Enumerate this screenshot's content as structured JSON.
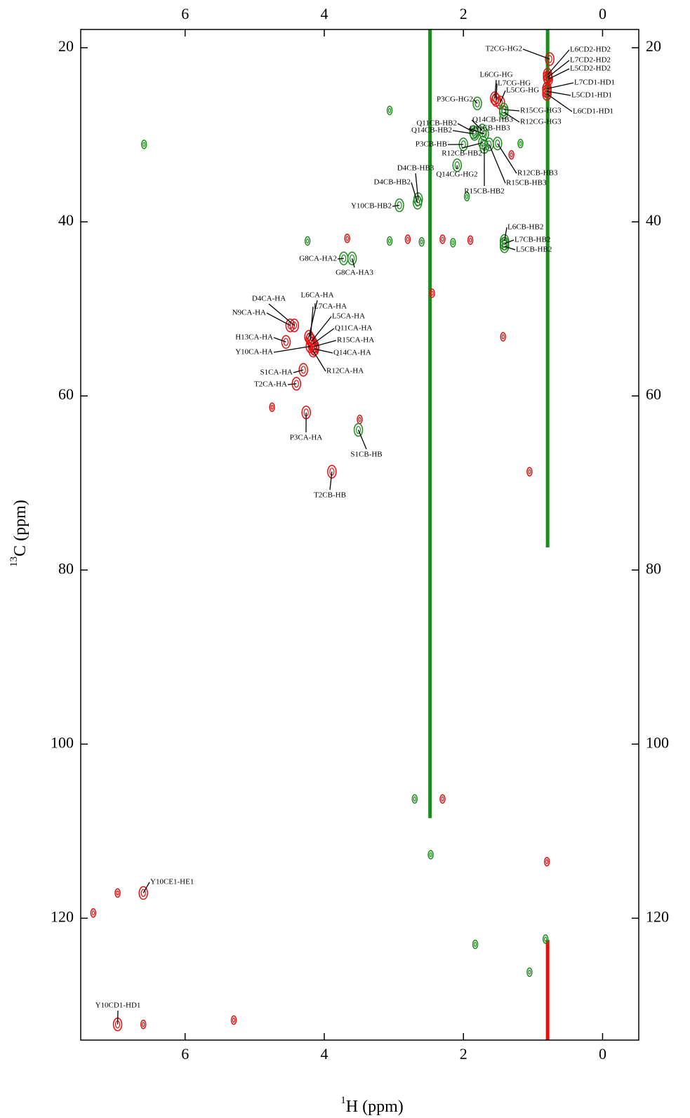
{
  "chart_data": {
    "type": "nmr-2d",
    "x_label_sup": "1",
    "x_label": "H  (ppm)",
    "y_label_sup": "13",
    "y_label": "C  (ppm)",
    "xlim": [
      7.5,
      -0.52
    ],
    "xticks": [
      6,
      4,
      2,
      0
    ],
    "ylim": [
      17.9,
      134
    ],
    "yticks": [
      20,
      40,
      60,
      80,
      100,
      120
    ],
    "positive_color": "#1f8a1f",
    "negative_color": "#e01010",
    "ridges": [
      {
        "x": 2.48,
        "y": [
          17.9,
          108.5
        ],
        "color": "#1f8a1f"
      },
      {
        "x": 0.79,
        "y": [
          17.9,
          77.4
        ],
        "color": "#1f8a1f"
      },
      {
        "x": 0.79,
        "y": [
          122.5,
          134
        ],
        "color": "#e01010"
      }
    ],
    "labeled_peaks": [
      {
        "label": "T2CG-HG2",
        "x": 0.76,
        "y": 21.3,
        "color": "#e01010"
      },
      {
        "label": "L6CD2-HD2",
        "x": 0.79,
        "y": 23.1,
        "color": "#e01010"
      },
      {
        "label": "L7CD2-HD2",
        "x": 0.79,
        "y": 23.4,
        "color": "#e01010"
      },
      {
        "label": "L5CD2-HD2",
        "x": 0.78,
        "y": 23.6,
        "color": "#e01010"
      },
      {
        "label": "L6CG-HG",
        "x": 1.55,
        "y": 25.8,
        "color": "#e01010"
      },
      {
        "label": "L7CG-HG",
        "x": 1.53,
        "y": 26.0,
        "color": "#e01010"
      },
      {
        "label": "L5CG-HG",
        "x": 1.47,
        "y": 26.3,
        "color": "#e01010"
      },
      {
        "label": "L7CD1-HD1",
        "x": 0.8,
        "y": 24.7,
        "color": "#e01010"
      },
      {
        "label": "L5CD1-HD1",
        "x": 0.8,
        "y": 25.0,
        "color": "#e01010"
      },
      {
        "label": "L6CD1-HD1",
        "x": 0.8,
        "y": 25.3,
        "color": "#e01010"
      },
      {
        "label": "P3CG-HG2",
        "x": 1.8,
        "y": 26.4,
        "color": "#1f8a1f"
      },
      {
        "label": "R15CG-HG3",
        "x": 1.42,
        "y": 27.1,
        "color": "#1f8a1f"
      },
      {
        "label": "R12CG-HG3",
        "x": 1.42,
        "y": 27.4,
        "color": "#1f8a1f"
      },
      {
        "label": "Q11CB-HB2",
        "x": 1.85,
        "y": 29.7,
        "color": "#1f8a1f"
      },
      {
        "label": "Q14CB-HB2",
        "x": 1.84,
        "y": 29.9,
        "color": "#1f8a1f"
      },
      {
        "label": "Q14CB-HB3",
        "x": 1.73,
        "y": 29.5,
        "color": "#1f8a1f"
      },
      {
        "label": "Q11CB-HB3",
        "x": 1.7,
        "y": 29.9,
        "color": "#1f8a1f"
      },
      {
        "label": "P3CB-HB",
        "x": 2.0,
        "y": 31.1,
        "color": "#1f8a1f"
      },
      {
        "label": "R12CB-HB2",
        "x": 1.72,
        "y": 30.9,
        "color": "#1f8a1f"
      },
      {
        "label": "R12CB-HB3",
        "x": 1.51,
        "y": 31.0,
        "color": "#1f8a1f"
      },
      {
        "label": "R15CB-HB3",
        "x": 1.63,
        "y": 31.1,
        "color": "#1f8a1f"
      },
      {
        "label": "R15CB-HB2",
        "x": 1.7,
        "y": 31.4,
        "color": "#1f8a1f"
      },
      {
        "label": "Q14CG-HG2",
        "x": 2.09,
        "y": 33.5,
        "color": "#1f8a1f"
      },
      {
        "label": "D4CB-HB3",
        "x": 2.65,
        "y": 37.4,
        "color": "#1f8a1f"
      },
      {
        "label": "D4CB-HB2",
        "x": 2.66,
        "y": 37.8,
        "color": "#1f8a1f"
      },
      {
        "label": "Y10CB-HB2",
        "x": 2.92,
        "y": 38.1,
        "color": "#1f8a1f"
      },
      {
        "label": "L6CB-HB2",
        "x": 1.41,
        "y": 42.2,
        "color": "#1f8a1f"
      },
      {
        "label": "L7CB-HB2",
        "x": 1.41,
        "y": 42.5,
        "color": "#1f8a1f"
      },
      {
        "label": "L5CB-HB2",
        "x": 1.41,
        "y": 42.8,
        "color": "#1f8a1f"
      },
      {
        "label": "G8CA-HA2",
        "x": 3.72,
        "y": 44.2,
        "color": "#1f8a1f"
      },
      {
        "label": "G8CA-HA3",
        "x": 3.6,
        "y": 44.2,
        "color": "#1f8a1f"
      },
      {
        "label": "D4CA-HA",
        "x": 4.43,
        "y": 51.9,
        "color": "#e01010"
      },
      {
        "label": "N9CA-HA",
        "x": 4.49,
        "y": 51.9,
        "color": "#e01010"
      },
      {
        "label": "L6CA-HA",
        "x": 4.22,
        "y": 53.2,
        "color": "#e01010"
      },
      {
        "label": "L7CA-HA",
        "x": 4.2,
        "y": 53.5,
        "color": "#e01010"
      },
      {
        "label": "L5CA-HA",
        "x": 4.18,
        "y": 53.7,
        "color": "#e01010"
      },
      {
        "label": "Q11CA-HA",
        "x": 4.16,
        "y": 54.0,
        "color": "#e01010"
      },
      {
        "label": "R15CA-HA",
        "x": 4.14,
        "y": 54.3,
        "color": "#e01010"
      },
      {
        "label": "Q14CA-HA",
        "x": 4.14,
        "y": 54.6,
        "color": "#e01010"
      },
      {
        "label": "R12CA-HA",
        "x": 4.16,
        "y": 54.8,
        "color": "#e01010"
      },
      {
        "label": "H13CA-HA",
        "x": 4.55,
        "y": 53.8,
        "color": "#e01010"
      },
      {
        "label": "Y10CA-HA",
        "x": 4.2,
        "y": 54.3,
        "color": "#e01010"
      },
      {
        "label": "S1CA-HA",
        "x": 4.3,
        "y": 57.0,
        "color": "#e01010"
      },
      {
        "label": "T2CA-HA",
        "x": 4.4,
        "y": 58.6,
        "color": "#e01010"
      },
      {
        "label": "P3CA-HA",
        "x": 4.26,
        "y": 61.9,
        "color": "#e01010"
      },
      {
        "label": "S1CB-HB",
        "x": 3.51,
        "y": 63.9,
        "color": "#1f8a1f"
      },
      {
        "label": "T2CB-HB",
        "x": 3.89,
        "y": 68.7,
        "color": "#e01010"
      },
      {
        "label": "Y10CE1-HE1",
        "x": 6.6,
        "y": 117.1,
        "color": "#e01010"
      },
      {
        "label": "Y10CD1-HD1",
        "x": 6.97,
        "y": 132.2,
        "color": "#e01010"
      }
    ],
    "other_peaks": [
      {
        "x": 6.59,
        "y": 31.1,
        "color": "#1f8a1f"
      },
      {
        "x": 3.06,
        "y": 27.2,
        "color": "#1f8a1f"
      },
      {
        "x": 1.31,
        "y": 32.3,
        "color": "#e01010"
      },
      {
        "x": 1.18,
        "y": 31.0,
        "color": "#1f8a1f"
      },
      {
        "x": 1.95,
        "y": 37.1,
        "color": "#1f8a1f"
      },
      {
        "x": 3.67,
        "y": 41.9,
        "color": "#e01010"
      },
      {
        "x": 3.06,
        "y": 42.2,
        "color": "#1f8a1f"
      },
      {
        "x": 4.24,
        "y": 42.2,
        "color": "#1f8a1f"
      },
      {
        "x": 2.8,
        "y": 42.0,
        "color": "#e01010"
      },
      {
        "x": 2.6,
        "y": 42.3,
        "color": "#1f8a1f"
      },
      {
        "x": 2.3,
        "y": 42.0,
        "color": "#e01010"
      },
      {
        "x": 2.15,
        "y": 42.4,
        "color": "#1f8a1f"
      },
      {
        "x": 1.9,
        "y": 42.1,
        "color": "#e01010"
      },
      {
        "x": 2.45,
        "y": 48.2,
        "color": "#e01010"
      },
      {
        "x": 1.43,
        "y": 53.2,
        "color": "#e01010"
      },
      {
        "x": 4.75,
        "y": 61.3,
        "color": "#e01010"
      },
      {
        "x": 3.49,
        "y": 62.7,
        "color": "#e01010"
      },
      {
        "x": 1.05,
        "y": 68.7,
        "color": "#e01010"
      },
      {
        "x": 2.7,
        "y": 106.3,
        "color": "#1f8a1f"
      },
      {
        "x": 2.3,
        "y": 106.3,
        "color": "#e01010"
      },
      {
        "x": 2.47,
        "y": 112.7,
        "color": "#1f8a1f"
      },
      {
        "x": 0.8,
        "y": 113.5,
        "color": "#e01010"
      },
      {
        "x": 6.97,
        "y": 117.1,
        "color": "#e01010"
      },
      {
        "x": 7.32,
        "y": 119.4,
        "color": "#e01010"
      },
      {
        "x": 0.82,
        "y": 122.4,
        "color": "#1f8a1f"
      },
      {
        "x": 1.83,
        "y": 123.0,
        "color": "#1f8a1f"
      },
      {
        "x": 1.05,
        "y": 126.2,
        "color": "#1f8a1f"
      },
      {
        "x": 5.3,
        "y": 131.7,
        "color": "#e01010"
      },
      {
        "x": 6.6,
        "y": 132.2,
        "color": "#e01010"
      }
    ]
  }
}
